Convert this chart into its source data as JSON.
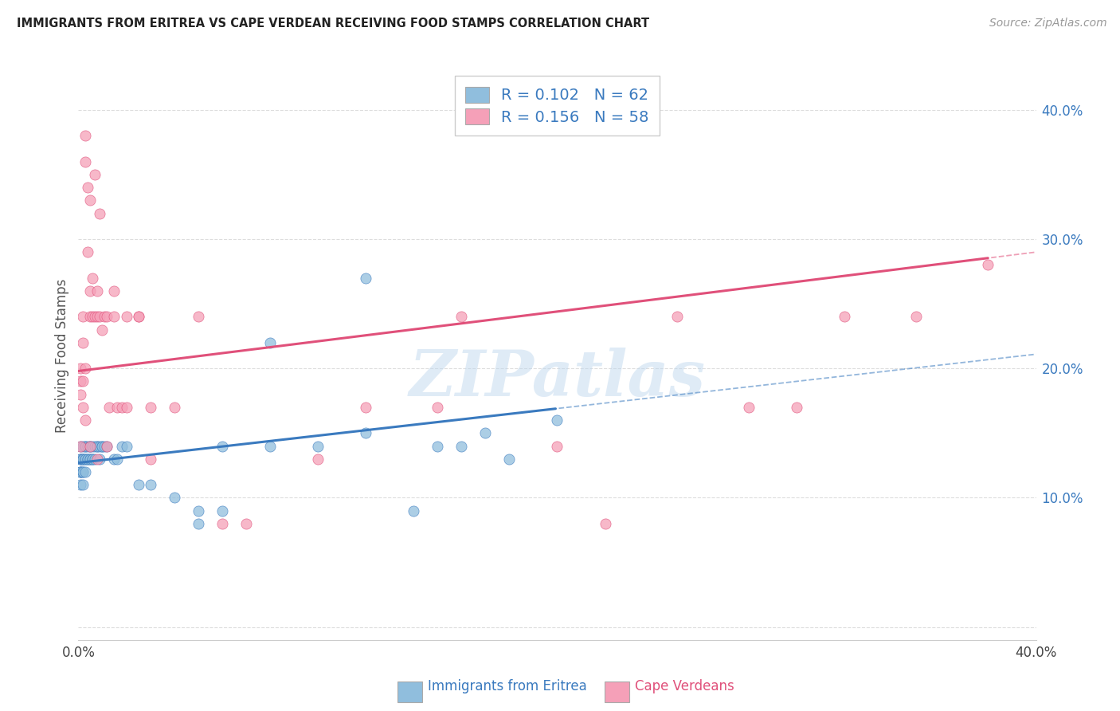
{
  "title": "IMMIGRANTS FROM ERITREA VS CAPE VERDEAN RECEIVING FOOD STAMPS CORRELATION CHART",
  "source": "Source: ZipAtlas.com",
  "ylabel": "Receiving Food Stamps",
  "legend_label1": "Immigrants from Eritrea",
  "legend_label2": "Cape Verdeans",
  "R1": 0.102,
  "N1": 62,
  "R2": 0.156,
  "N2": 58,
  "color_eritrea": "#90bedd",
  "color_cape_verde": "#f5a0b8",
  "color_eritrea_line": "#3a7abf",
  "color_cape_verde_line": "#e0507a",
  "xlim": [
    0.0,
    0.4
  ],
  "ylim": [
    -0.01,
    0.43
  ],
  "watermark_text": "ZIPatlas",
  "background_color": "#ffffff",
  "grid_color": "#dddddd",
  "eritrea_x": [
    0.001,
    0.001,
    0.001,
    0.001,
    0.001,
    0.001,
    0.001,
    0.001,
    0.002,
    0.002,
    0.002,
    0.002,
    0.002,
    0.002,
    0.002,
    0.003,
    0.003,
    0.003,
    0.003,
    0.003,
    0.004,
    0.004,
    0.004,
    0.005,
    0.005,
    0.005,
    0.005,
    0.006,
    0.006,
    0.006,
    0.007,
    0.007,
    0.008,
    0.008,
    0.009,
    0.009,
    0.01,
    0.01,
    0.011,
    0.012,
    0.015,
    0.016,
    0.018,
    0.02,
    0.025,
    0.03,
    0.04,
    0.05,
    0.06,
    0.08,
    0.1,
    0.12,
    0.14,
    0.16,
    0.18,
    0.2,
    0.12,
    0.08,
    0.06,
    0.05,
    0.15,
    0.17
  ],
  "eritrea_y": [
    0.13,
    0.14,
    0.12,
    0.13,
    0.12,
    0.11,
    0.13,
    0.12,
    0.13,
    0.14,
    0.12,
    0.13,
    0.11,
    0.13,
    0.12,
    0.14,
    0.13,
    0.12,
    0.13,
    0.14,
    0.14,
    0.13,
    0.13,
    0.14,
    0.13,
    0.14,
    0.13,
    0.14,
    0.13,
    0.13,
    0.14,
    0.13,
    0.14,
    0.14,
    0.14,
    0.13,
    0.14,
    0.14,
    0.14,
    0.14,
    0.13,
    0.13,
    0.14,
    0.14,
    0.11,
    0.11,
    0.1,
    0.09,
    0.14,
    0.14,
    0.14,
    0.15,
    0.09,
    0.14,
    0.13,
    0.16,
    0.27,
    0.22,
    0.09,
    0.08,
    0.14,
    0.15
  ],
  "cape_verde_x": [
    0.001,
    0.001,
    0.001,
    0.001,
    0.002,
    0.002,
    0.002,
    0.002,
    0.003,
    0.003,
    0.003,
    0.004,
    0.004,
    0.005,
    0.005,
    0.005,
    0.006,
    0.006,
    0.007,
    0.007,
    0.008,
    0.008,
    0.009,
    0.009,
    0.01,
    0.011,
    0.012,
    0.013,
    0.015,
    0.016,
    0.018,
    0.02,
    0.025,
    0.03,
    0.04,
    0.05,
    0.06,
    0.07,
    0.1,
    0.12,
    0.15,
    0.16,
    0.2,
    0.22,
    0.25,
    0.28,
    0.3,
    0.32,
    0.35,
    0.38,
    0.015,
    0.02,
    0.03,
    0.025,
    0.012,
    0.008,
    0.005,
    0.003
  ],
  "cape_verde_y": [
    0.19,
    0.2,
    0.18,
    0.14,
    0.19,
    0.24,
    0.22,
    0.17,
    0.38,
    0.36,
    0.2,
    0.34,
    0.29,
    0.33,
    0.26,
    0.24,
    0.27,
    0.24,
    0.35,
    0.24,
    0.26,
    0.24,
    0.32,
    0.24,
    0.23,
    0.24,
    0.24,
    0.17,
    0.26,
    0.17,
    0.17,
    0.24,
    0.24,
    0.17,
    0.17,
    0.24,
    0.08,
    0.08,
    0.13,
    0.17,
    0.17,
    0.24,
    0.14,
    0.08,
    0.24,
    0.17,
    0.17,
    0.24,
    0.24,
    0.28,
    0.24,
    0.17,
    0.13,
    0.24,
    0.14,
    0.13,
    0.14,
    0.16
  ]
}
